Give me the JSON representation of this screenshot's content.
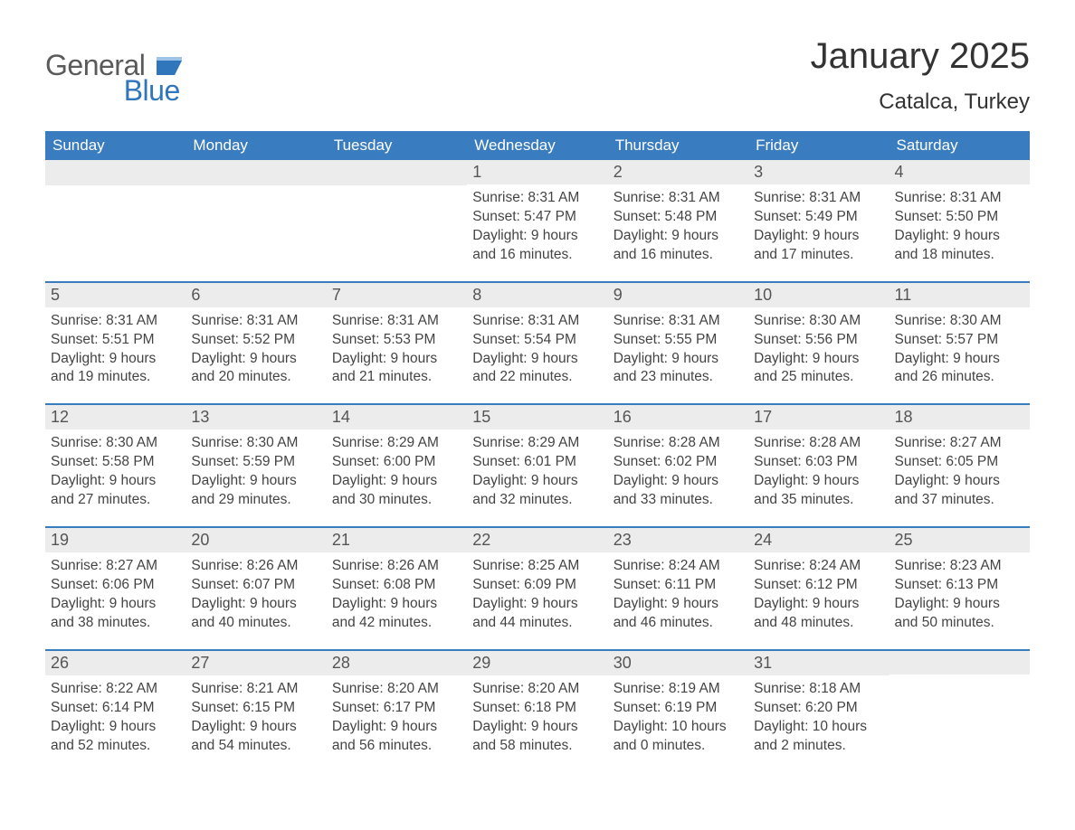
{
  "logo": {
    "line1": "General",
    "line2": "Blue",
    "icon_color": "#2f76bd",
    "text_color_gray": "#5a5a5a",
    "text_color_blue": "#2f76bd"
  },
  "header": {
    "month_title": "January 2025",
    "location": "Catalca, Turkey"
  },
  "colors": {
    "header_bar": "#3a7cc0",
    "day_bar_bg": "#ececec",
    "day_bar_border": "#3a7cc0",
    "page_bg": "#ffffff",
    "text_primary": "#333333",
    "text_body": "#444444"
  },
  "typography": {
    "month_title_fontsize": 40,
    "location_fontsize": 24,
    "dow_fontsize": 17,
    "daynum_fontsize": 18,
    "body_fontsize": 15.5,
    "logo_fontsize": 32
  },
  "days_of_week": [
    "Sunday",
    "Monday",
    "Tuesday",
    "Wednesday",
    "Thursday",
    "Friday",
    "Saturday"
  ],
  "weeks": [
    [
      null,
      null,
      null,
      {
        "n": "1",
        "sunrise": "Sunrise: 8:31 AM",
        "sunset": "Sunset: 5:47 PM",
        "daylight": "Daylight: 9 hours and 16 minutes."
      },
      {
        "n": "2",
        "sunrise": "Sunrise: 8:31 AM",
        "sunset": "Sunset: 5:48 PM",
        "daylight": "Daylight: 9 hours and 16 minutes."
      },
      {
        "n": "3",
        "sunrise": "Sunrise: 8:31 AM",
        "sunset": "Sunset: 5:49 PM",
        "daylight": "Daylight: 9 hours and 17 minutes."
      },
      {
        "n": "4",
        "sunrise": "Sunrise: 8:31 AM",
        "sunset": "Sunset: 5:50 PM",
        "daylight": "Daylight: 9 hours and 18 minutes."
      }
    ],
    [
      {
        "n": "5",
        "sunrise": "Sunrise: 8:31 AM",
        "sunset": "Sunset: 5:51 PM",
        "daylight": "Daylight: 9 hours and 19 minutes."
      },
      {
        "n": "6",
        "sunrise": "Sunrise: 8:31 AM",
        "sunset": "Sunset: 5:52 PM",
        "daylight": "Daylight: 9 hours and 20 minutes."
      },
      {
        "n": "7",
        "sunrise": "Sunrise: 8:31 AM",
        "sunset": "Sunset: 5:53 PM",
        "daylight": "Daylight: 9 hours and 21 minutes."
      },
      {
        "n": "8",
        "sunrise": "Sunrise: 8:31 AM",
        "sunset": "Sunset: 5:54 PM",
        "daylight": "Daylight: 9 hours and 22 minutes."
      },
      {
        "n": "9",
        "sunrise": "Sunrise: 8:31 AM",
        "sunset": "Sunset: 5:55 PM",
        "daylight": "Daylight: 9 hours and 23 minutes."
      },
      {
        "n": "10",
        "sunrise": "Sunrise: 8:30 AM",
        "sunset": "Sunset: 5:56 PM",
        "daylight": "Daylight: 9 hours and 25 minutes."
      },
      {
        "n": "11",
        "sunrise": "Sunrise: 8:30 AM",
        "sunset": "Sunset: 5:57 PM",
        "daylight": "Daylight: 9 hours and 26 minutes."
      }
    ],
    [
      {
        "n": "12",
        "sunrise": "Sunrise: 8:30 AM",
        "sunset": "Sunset: 5:58 PM",
        "daylight": "Daylight: 9 hours and 27 minutes."
      },
      {
        "n": "13",
        "sunrise": "Sunrise: 8:30 AM",
        "sunset": "Sunset: 5:59 PM",
        "daylight": "Daylight: 9 hours and 29 minutes."
      },
      {
        "n": "14",
        "sunrise": "Sunrise: 8:29 AM",
        "sunset": "Sunset: 6:00 PM",
        "daylight": "Daylight: 9 hours and 30 minutes."
      },
      {
        "n": "15",
        "sunrise": "Sunrise: 8:29 AM",
        "sunset": "Sunset: 6:01 PM",
        "daylight": "Daylight: 9 hours and 32 minutes."
      },
      {
        "n": "16",
        "sunrise": "Sunrise: 8:28 AM",
        "sunset": "Sunset: 6:02 PM",
        "daylight": "Daylight: 9 hours and 33 minutes."
      },
      {
        "n": "17",
        "sunrise": "Sunrise: 8:28 AM",
        "sunset": "Sunset: 6:03 PM",
        "daylight": "Daylight: 9 hours and 35 minutes."
      },
      {
        "n": "18",
        "sunrise": "Sunrise: 8:27 AM",
        "sunset": "Sunset: 6:05 PM",
        "daylight": "Daylight: 9 hours and 37 minutes."
      }
    ],
    [
      {
        "n": "19",
        "sunrise": "Sunrise: 8:27 AM",
        "sunset": "Sunset: 6:06 PM",
        "daylight": "Daylight: 9 hours and 38 minutes."
      },
      {
        "n": "20",
        "sunrise": "Sunrise: 8:26 AM",
        "sunset": "Sunset: 6:07 PM",
        "daylight": "Daylight: 9 hours and 40 minutes."
      },
      {
        "n": "21",
        "sunrise": "Sunrise: 8:26 AM",
        "sunset": "Sunset: 6:08 PM",
        "daylight": "Daylight: 9 hours and 42 minutes."
      },
      {
        "n": "22",
        "sunrise": "Sunrise: 8:25 AM",
        "sunset": "Sunset: 6:09 PM",
        "daylight": "Daylight: 9 hours and 44 minutes."
      },
      {
        "n": "23",
        "sunrise": "Sunrise: 8:24 AM",
        "sunset": "Sunset: 6:11 PM",
        "daylight": "Daylight: 9 hours and 46 minutes."
      },
      {
        "n": "24",
        "sunrise": "Sunrise: 8:24 AM",
        "sunset": "Sunset: 6:12 PM",
        "daylight": "Daylight: 9 hours and 48 minutes."
      },
      {
        "n": "25",
        "sunrise": "Sunrise: 8:23 AM",
        "sunset": "Sunset: 6:13 PM",
        "daylight": "Daylight: 9 hours and 50 minutes."
      }
    ],
    [
      {
        "n": "26",
        "sunrise": "Sunrise: 8:22 AM",
        "sunset": "Sunset: 6:14 PM",
        "daylight": "Daylight: 9 hours and 52 minutes."
      },
      {
        "n": "27",
        "sunrise": "Sunrise: 8:21 AM",
        "sunset": "Sunset: 6:15 PM",
        "daylight": "Daylight: 9 hours and 54 minutes."
      },
      {
        "n": "28",
        "sunrise": "Sunrise: 8:20 AM",
        "sunset": "Sunset: 6:17 PM",
        "daylight": "Daylight: 9 hours and 56 minutes."
      },
      {
        "n": "29",
        "sunrise": "Sunrise: 8:20 AM",
        "sunset": "Sunset: 6:18 PM",
        "daylight": "Daylight: 9 hours and 58 minutes."
      },
      {
        "n": "30",
        "sunrise": "Sunrise: 8:19 AM",
        "sunset": "Sunset: 6:19 PM",
        "daylight": "Daylight: 10 hours and 0 minutes."
      },
      {
        "n": "31",
        "sunrise": "Sunrise: 8:18 AM",
        "sunset": "Sunset: 6:20 PM",
        "daylight": "Daylight: 10 hours and 2 minutes."
      },
      null
    ]
  ]
}
